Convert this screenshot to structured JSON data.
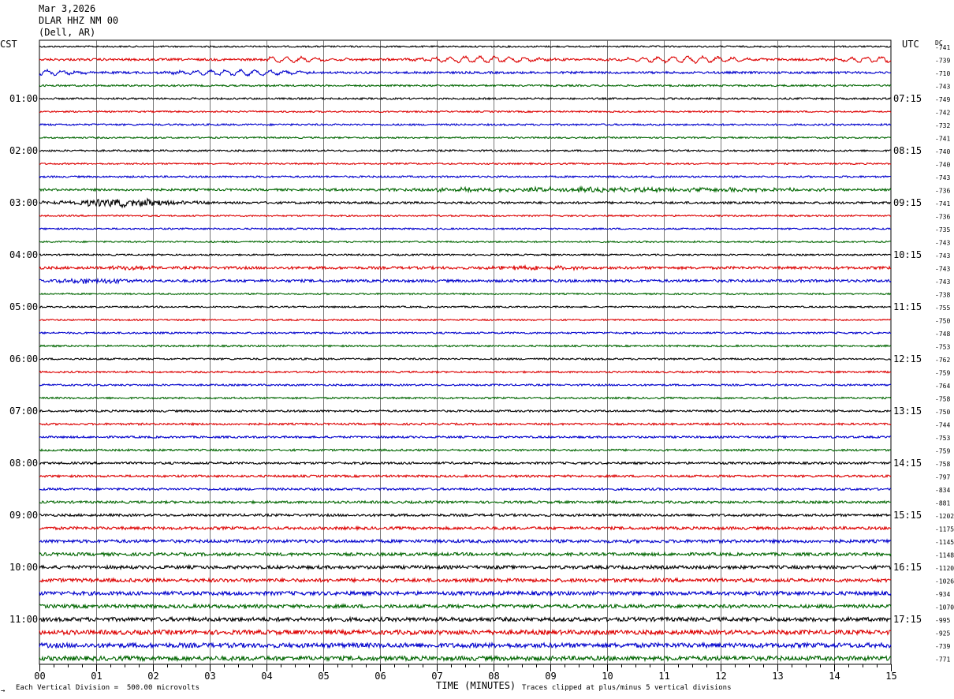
{
  "header": {
    "date": "Mar 3,2026",
    "station": "DLAR HHZ NM 00",
    "location": "(Dell, AR)"
  },
  "axes": {
    "left_label": "CST",
    "right_label": "UTC",
    "dc_label": "DC",
    "x_title": "TIME (MINUTES)",
    "footer_left": "Each Vertical Division =  500.00 microvolts",
    "footer_right": "Traces clipped at plus/minus 5 vertical divisions",
    "corner_mark": "→"
  },
  "colors": {
    "trace_cycle": [
      "#000000",
      "#dd0000",
      "#0000cc",
      "#006600"
    ],
    "grid": "#000000",
    "background": "#ffffff"
  },
  "chart_data": {
    "type": "line",
    "title": "DLAR HHZ NM 00 (Dell, AR)  Mar 3,2026",
    "xlabel": "TIME (MINUTES)",
    "ylabel": "",
    "xlim": [
      0,
      15
    ],
    "x_ticks": [
      "00",
      "01",
      "02",
      "03",
      "04",
      "05",
      "06",
      "07",
      "08",
      "09",
      "10",
      "11",
      "12",
      "13",
      "14",
      "15"
    ],
    "minor_tick_step_minutes": 0.25,
    "grid": true,
    "traces_per_hour": 4,
    "left_time_labels": [
      "01:00",
      "02:00",
      "03:00",
      "04:00",
      "05:00",
      "06:00",
      "07:00",
      "08:00",
      "09:00",
      "10:00",
      "11:00"
    ],
    "right_time_labels": [
      "07:15",
      "08:15",
      "09:15",
      "10:15",
      "11:15",
      "12:15",
      "13:15",
      "14:15",
      "15:15",
      "16:15",
      "17:15"
    ],
    "label_first_trace_index": 4,
    "dc_offsets": [
      "-741",
      "-739",
      "-710",
      "-743",
      "-749",
      "-742",
      "-732",
      "-741",
      "-740",
      "-740",
      "-743",
      "-736",
      "-741",
      "-736",
      "-735",
      "-743",
      "-743",
      "-743",
      "-743",
      "-738",
      "-755",
      "-750",
      "-748",
      "-753",
      "-762",
      "-759",
      "-764",
      "-758",
      "-750",
      "-744",
      "-753",
      "-759",
      "-758",
      "-797",
      "-834",
      "-881",
      "-1202",
      "-1175",
      "-1145",
      "-1148",
      "-1120",
      "-1026",
      "-934",
      "-1070",
      "-995",
      "-925",
      "-739",
      "-771"
    ],
    "trace_noise_level": [
      0.7,
      1.0,
      1.0,
      0.8,
      0.8,
      0.7,
      0.8,
      0.7,
      0.8,
      0.7,
      0.8,
      1.0,
      1.0,
      0.7,
      0.7,
      0.7,
      0.7,
      1.2,
      1.2,
      0.7,
      0.7,
      0.7,
      0.8,
      0.8,
      0.8,
      0.8,
      0.8,
      0.8,
      0.9,
      0.9,
      0.9,
      0.9,
      1.0,
      1.0,
      1.0,
      1.1,
      1.1,
      1.3,
      1.4,
      1.4,
      1.5,
      1.6,
      1.7,
      1.6,
      1.8,
      2.0,
      2.1,
      2.0
    ],
    "events": [
      {
        "trace": 1,
        "start_min": 4.0,
        "end_min": 15.0,
        "peak_amp": 3.5,
        "type": "long-period"
      },
      {
        "trace": 2,
        "start_min": 0.0,
        "end_min": 5.0,
        "peak_amp": 3.0,
        "type": "long-period"
      },
      {
        "trace": 11,
        "start_min": 4.5,
        "end_min": 15.0,
        "peak_amp": 2.2,
        "type": "noise-burst"
      },
      {
        "trace": 12,
        "start_min": 0.0,
        "end_min": 3.0,
        "peak_amp": 4.5,
        "type": "local-event"
      },
      {
        "trace": 17,
        "start_min": 1.0,
        "end_min": 2.2,
        "peak_amp": 2.5,
        "type": "noise-burst"
      },
      {
        "trace": 17,
        "start_min": 7.8,
        "end_min": 9.8,
        "peak_amp": 2.2,
        "type": "noise-burst"
      },
      {
        "trace": 18,
        "start_min": 0.0,
        "end_min": 2.0,
        "peak_amp": 2.5,
        "type": "noise-burst"
      }
    ]
  }
}
